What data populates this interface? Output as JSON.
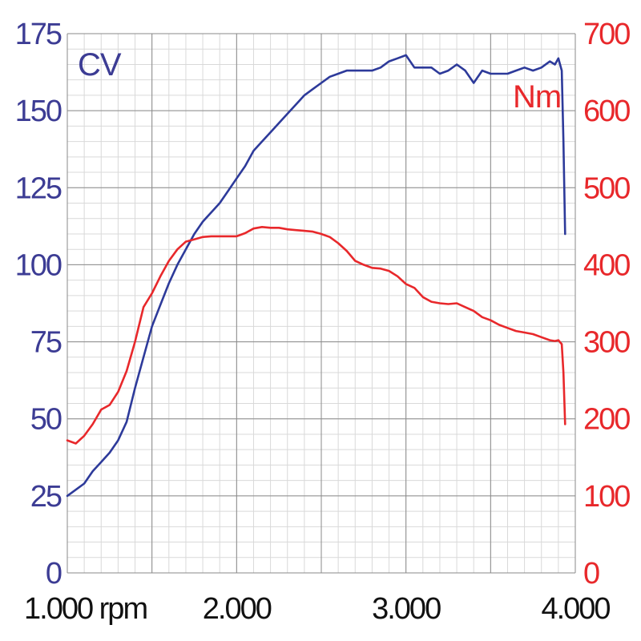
{
  "chart_data": {
    "type": "line",
    "x_axis": {
      "min": 1000,
      "max": 4000,
      "tick_labels": [
        "1.000 rpm",
        "2.000",
        "3.000",
        "4.000"
      ],
      "tick_values": [
        1000,
        2000,
        3000,
        4000
      ]
    },
    "y_axis_left": {
      "label": "CV",
      "min": 0,
      "max": 175,
      "tick_labels": [
        "0",
        "25",
        "50",
        "75",
        "100",
        "125",
        "150",
        "175"
      ],
      "tick_values": [
        0,
        25,
        50,
        75,
        100,
        125,
        150,
        175
      ],
      "color": "#3c3c94"
    },
    "y_axis_right": {
      "label": "Nm",
      "min": 0,
      "max": 700,
      "tick_labels": [
        "0",
        "100",
        "200",
        "300",
        "400",
        "500",
        "600",
        "700"
      ],
      "tick_values": [
        0,
        100,
        200,
        300,
        400,
        500,
        600,
        700
      ],
      "color": "#e8282b"
    },
    "x_label_color": "#111111",
    "grid": true,
    "series": [
      {
        "name": "CV",
        "axis": "left",
        "color": "#2d3a9a",
        "x": [
          1000,
          1050,
          1100,
          1150,
          1200,
          1250,
          1300,
          1350,
          1400,
          1450,
          1500,
          1550,
          1600,
          1650,
          1700,
          1750,
          1800,
          1850,
          1900,
          1950,
          2000,
          2050,
          2100,
          2150,
          2200,
          2250,
          2300,
          2350,
          2400,
          2450,
          2500,
          2550,
          2600,
          2650,
          2700,
          2750,
          2800,
          2850,
          2900,
          2950,
          3000,
          3050,
          3100,
          3150,
          3200,
          3250,
          3300,
          3350,
          3400,
          3450,
          3500,
          3550,
          3600,
          3650,
          3700,
          3750,
          3800,
          3850,
          3880,
          3900,
          3920,
          3930,
          3940
        ],
        "values": [
          25,
          27,
          29,
          33,
          36,
          39,
          43,
          49,
          60,
          70,
          80,
          87,
          94,
          100,
          105,
          110,
          114,
          117,
          120,
          124,
          128,
          132,
          137,
          140,
          143,
          146,
          149,
          152,
          155,
          157,
          159,
          161,
          162,
          163,
          163,
          163,
          163,
          164,
          166,
          167,
          168,
          164,
          164,
          164,
          162,
          163,
          165,
          163,
          159,
          163,
          162,
          162,
          162,
          163,
          164,
          163,
          164,
          166,
          165,
          167,
          163,
          140,
          110
        ]
      },
      {
        "name": "Nm",
        "axis": "right",
        "color": "#e8282b",
        "x": [
          1000,
          1050,
          1100,
          1150,
          1200,
          1250,
          1300,
          1350,
          1400,
          1450,
          1500,
          1550,
          1600,
          1650,
          1700,
          1750,
          1800,
          1850,
          1900,
          1950,
          2000,
          2050,
          2100,
          2150,
          2200,
          2250,
          2300,
          2350,
          2400,
          2450,
          2500,
          2550,
          2600,
          2650,
          2700,
          2750,
          2800,
          2850,
          2900,
          2950,
          3000,
          3050,
          3100,
          3150,
          3200,
          3250,
          3300,
          3350,
          3400,
          3450,
          3500,
          3550,
          3600,
          3650,
          3700,
          3750,
          3800,
          3850,
          3880,
          3900,
          3920,
          3930,
          3940
        ],
        "values": [
          172,
          168,
          178,
          193,
          212,
          218,
          235,
          262,
          300,
          345,
          363,
          385,
          405,
          420,
          430,
          433,
          436,
          437,
          437,
          437,
          437,
          441,
          447,
          449,
          448,
          448,
          446,
          445,
          444,
          443,
          440,
          436,
          428,
          418,
          405,
          400,
          396,
          395,
          392,
          385,
          375,
          370,
          358,
          352,
          350,
          349,
          350,
          345,
          340,
          332,
          328,
          322,
          318,
          314,
          312,
          310,
          306,
          302,
          301,
          302,
          297,
          260,
          193
        ]
      }
    ]
  }
}
